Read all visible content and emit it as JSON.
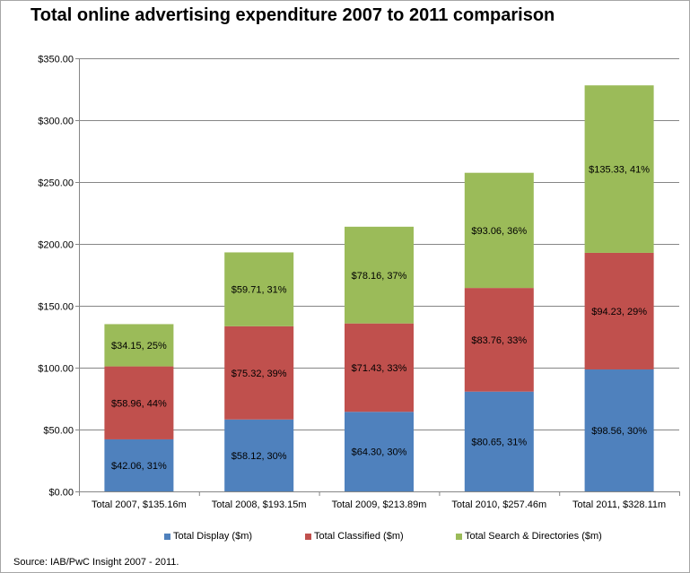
{
  "title": "Total online advertising expenditure 2007 to 2011 comparison",
  "source": "Source: IAB/PwC Insight 2007 - 2011.",
  "colors": {
    "display": "#4f81bd",
    "classified": "#c0504d",
    "search": "#9bbb59"
  },
  "chart_data": {
    "type": "bar",
    "stacked": true,
    "title": "Total online advertising expenditure 2007 to 2011 comparison",
    "xlabel": "",
    "ylabel": "",
    "ylim": [
      0,
      350
    ],
    "yticks": [
      0,
      50,
      100,
      150,
      200,
      250,
      300,
      350
    ],
    "ytick_labels": [
      "$0.00",
      "$50.00",
      "$100.00",
      "$150.00",
      "$200.00",
      "$250.00",
      "$300.00",
      "$350.00"
    ],
    "grid": true,
    "legend_position": "bottom",
    "categories": [
      "Total 2007,  $135.16m",
      "Total 2008,  $193.15m",
      "Total 2009,  $213.89m",
      "Total 2010,  $257.46m",
      "Total 2011,  $328.11m"
    ],
    "series": [
      {
        "name": "Total Display ($m)",
        "values": [
          42.06,
          58.12,
          64.3,
          80.65,
          98.56
        ],
        "labels": [
          "$42.06, 31%",
          "$58.12, 30%",
          "$64.30, 30%",
          "$80.65, 31%",
          "$98.56, 30%"
        ]
      },
      {
        "name": "Total Classified ($m)",
        "values": [
          58.96,
          75.32,
          71.43,
          83.76,
          94.23
        ],
        "labels": [
          "$58.96, 44%",
          "$75.32, 39%",
          "$71.43, 33%",
          "$83.76, 33%",
          "$94.23, 29%"
        ]
      },
      {
        "name": "Total Search & Directories ($m)",
        "values": [
          34.15,
          59.71,
          78.16,
          93.06,
          135.33
        ],
        "labels": [
          "$34.15, 25%",
          "$59.71, 31%",
          "$78.16, 37%",
          "$93.06, 36%",
          "$135.33, 41%"
        ]
      }
    ]
  }
}
